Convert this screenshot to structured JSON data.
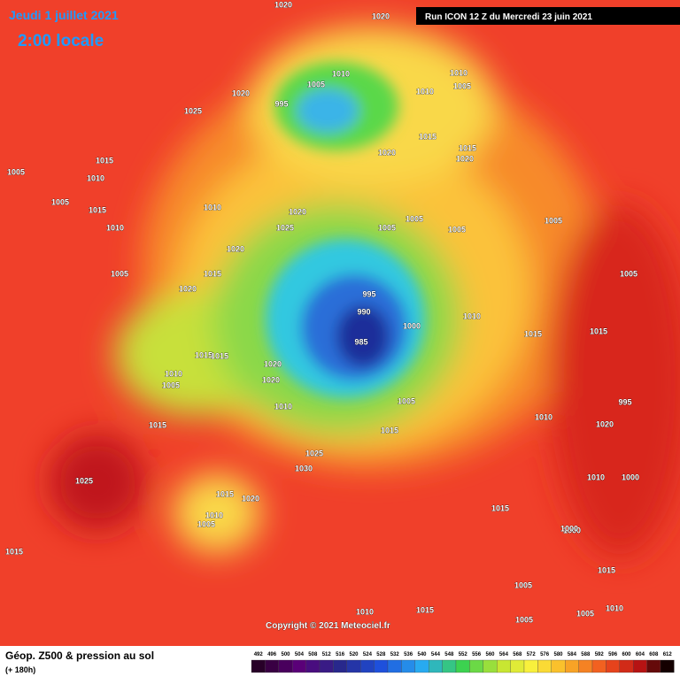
{
  "header": {
    "date": "Jeudi 1 juillet 2021",
    "time": "2:00 locale",
    "run": "Run ICON 12 Z du Mercredi 23 juin 2021"
  },
  "copyright": "Copyright © 2021 Meteociel.fr",
  "footer": {
    "title": "Géop. Z500 & pression au sol",
    "lead": "(+ 180h)"
  },
  "scale": [
    492,
    496,
    500,
    504,
    508,
    512,
    516,
    520,
    524,
    528,
    532,
    536,
    540,
    544,
    548,
    552,
    556,
    560,
    564,
    568,
    572,
    576,
    580,
    584,
    588,
    592,
    596,
    600,
    604,
    608,
    612
  ],
  "isobar_labels": [
    1020,
    1020,
    1010,
    1010,
    1005,
    995,
    1005,
    1010,
    1015,
    1015,
    1020,
    1020,
    1025,
    1020,
    1005,
    1015,
    1010,
    1005,
    1015,
    1010,
    1005,
    1020,
    1025,
    1020,
    1015,
    1020,
    1005,
    1005,
    995,
    990,
    985,
    1000,
    1010,
    1015,
    1010,
    1005,
    1015,
    1015,
    1020,
    1020,
    1015,
    1010,
    1005,
    1025,
    1030,
    1015,
    1010,
    1005,
    1020,
    1025,
    1015,
    1015,
    1015,
    1005,
    1010,
    1010,
    1005,
    1005,
    1000,
    1015,
    1010,
    1005,
    1015,
    1005,
    1010,
    1020,
    995,
    1000,
    1010,
    1015,
    1005,
    1000
  ]
}
